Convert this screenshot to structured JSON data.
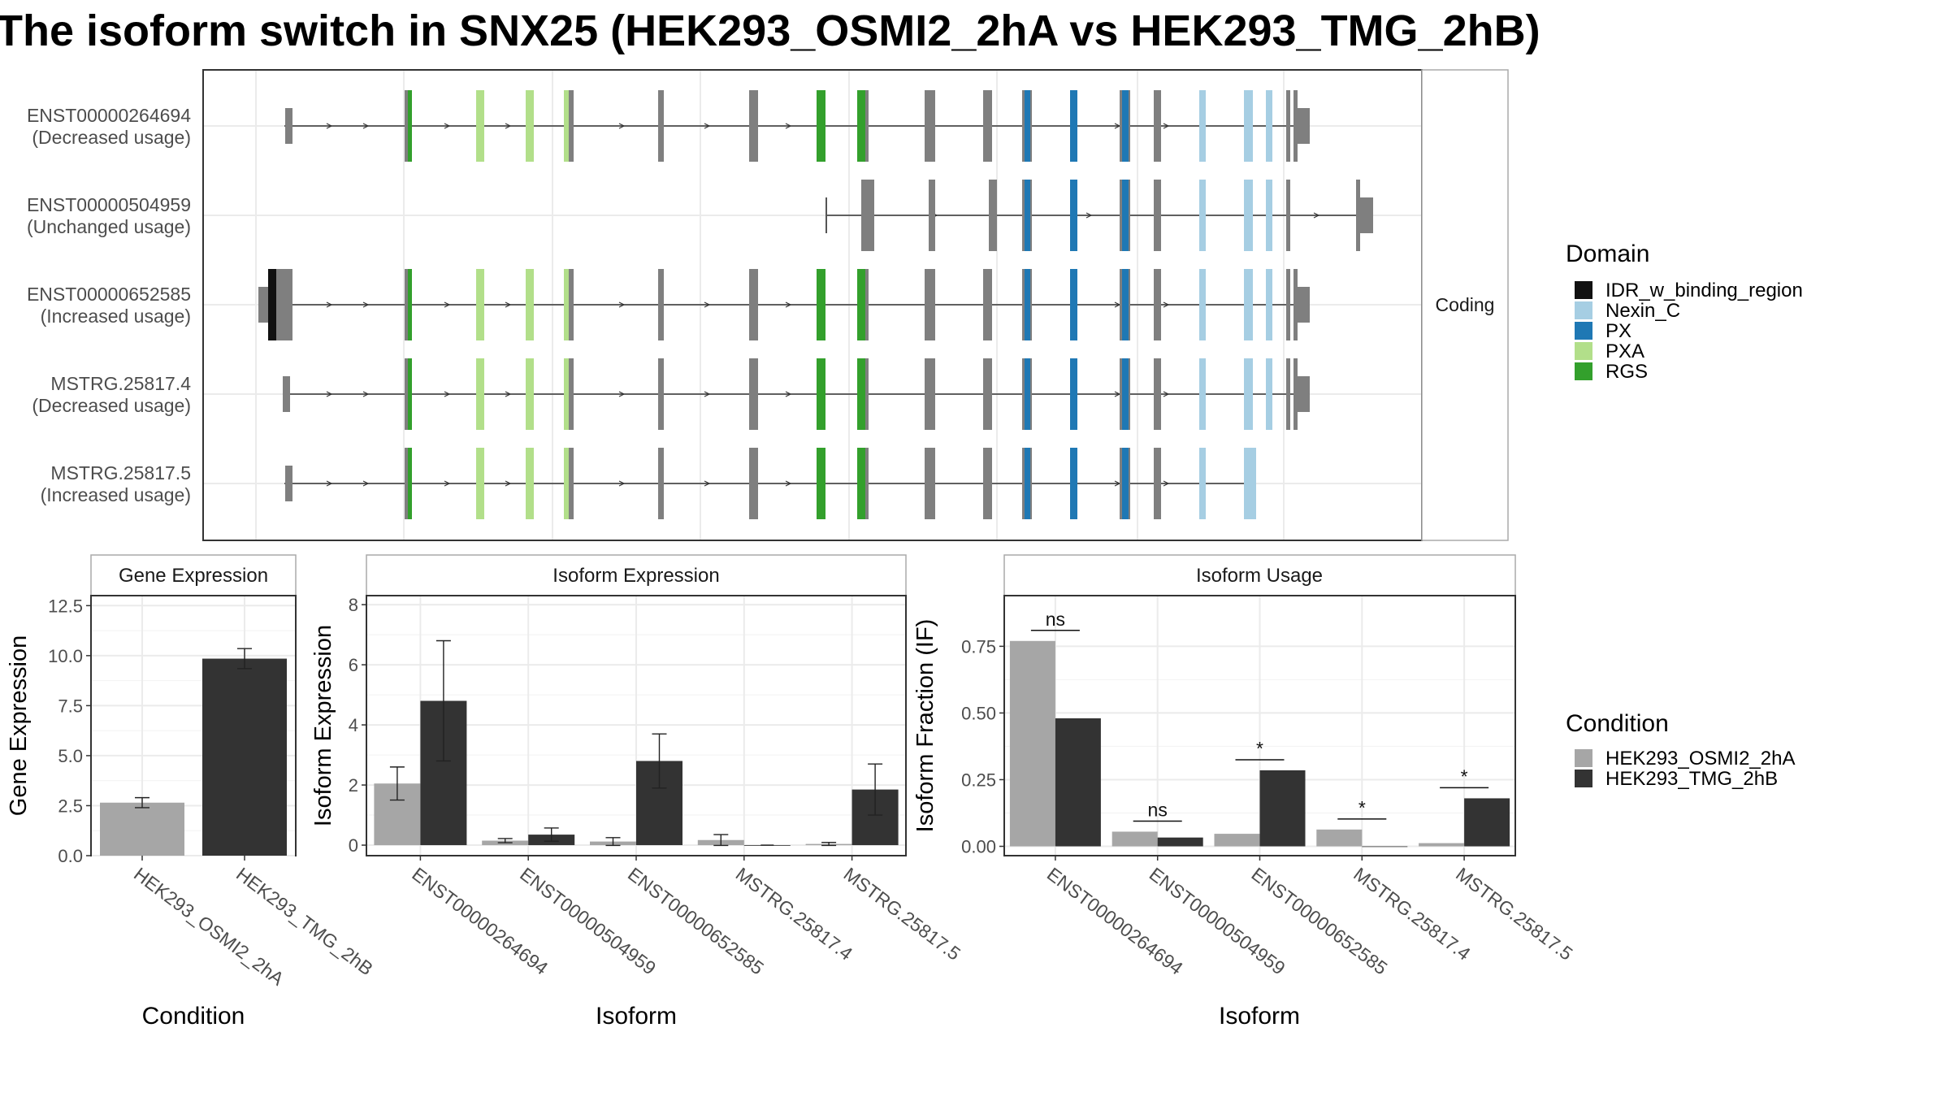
{
  "title": "The isoform switch in SNX25 (HEK293_OSMI2_2hA vs HEK293_TMG_2hB)",
  "colors": {
    "IDR_w_binding_region": "#111111",
    "Nexin_C": "#a6cee3",
    "PX": "#1f78b4",
    "PXA": "#b2df8a",
    "RGS": "#33a02c",
    "exon": "#7f7f7f",
    "cond_a": "#a6a6a6",
    "cond_b": "#333333"
  },
  "structure": {
    "strip_label": "Coding",
    "isoforms": [
      {
        "id": "ENST00000264694",
        "usage": "(Decreased usage)"
      },
      {
        "id": "ENST00000504959",
        "usage": "(Unchanged usage)"
      },
      {
        "id": "ENST00000652585",
        "usage": "(Increased usage)"
      },
      {
        "id": "MSTRG.25817.4",
        "usage": "(Decreased usage)"
      },
      {
        "id": "MSTRG.25817.5",
        "usage": "(Increased usage)"
      }
    ],
    "domain_legend": {
      "title": "Domain",
      "items": [
        "IDR_w_binding_region",
        "Nexin_C",
        "PX",
        "PXA",
        "RGS"
      ]
    }
  },
  "chart_data": [
    {
      "type": "bar",
      "title": "Gene Expression",
      "xlabel": "Condition",
      "ylabel": "Gene Expression",
      "categories": [
        "HEK293_OSMI2_2hA",
        "HEK293_TMG_2hB"
      ],
      "values": [
        2.65,
        9.85
      ],
      "error": [
        0.25,
        0.5
      ],
      "ylim": [
        0,
        13
      ],
      "yticks": [
        "0.0",
        "2.5",
        "5.0",
        "7.5",
        "10.0",
        "12.5"
      ]
    },
    {
      "type": "bar",
      "title": "Isoform Expression",
      "xlabel": "Isoform",
      "ylabel": "Isoform Expression",
      "categories": [
        "ENST00000264694",
        "ENST00000504959",
        "ENST00000652585",
        "MSTRG.25817.4",
        "MSTRG.25817.5"
      ],
      "series": [
        {
          "name": "HEK293_OSMI2_2hA",
          "values": [
            2.05,
            0.15,
            0.12,
            0.17,
            0.04
          ],
          "error": [
            0.55,
            0.07,
            0.13,
            0.18,
            0.05
          ]
        },
        {
          "name": "HEK293_TMG_2hB",
          "values": [
            4.8,
            0.35,
            2.8,
            0.0,
            1.85
          ],
          "error": [
            2.0,
            0.22,
            0.9,
            0.0,
            0.85
          ]
        }
      ],
      "ylim": [
        -0.35,
        8.3
      ],
      "yticks": [
        "0",
        "2",
        "4",
        "6",
        "8"
      ]
    },
    {
      "type": "bar",
      "title": "Isoform Usage",
      "xlabel": "Isoform",
      "ylabel": "Isoform Fraction (IF)",
      "categories": [
        "ENST00000264694",
        "ENST00000504959",
        "ENST00000652585",
        "MSTRG.25817.4",
        "MSTRG.25817.5"
      ],
      "series": [
        {
          "name": "HEK293_OSMI2_2hA",
          "values": [
            0.77,
            0.055,
            0.047,
            0.063,
            0.012
          ]
        },
        {
          "name": "HEK293_TMG_2hB",
          "values": [
            0.48,
            0.033,
            0.285,
            0.0,
            0.18
          ]
        }
      ],
      "significance": [
        "ns",
        "ns",
        "*",
        "*",
        "*"
      ],
      "ylim": [
        -0.035,
        0.94
      ],
      "yticks": [
        "0.00",
        "0.25",
        "0.50",
        "0.75"
      ]
    }
  ],
  "condition_legend": {
    "title": "Condition",
    "items": [
      "HEK293_OSMI2_2hA",
      "HEK293_TMG_2hB"
    ]
  }
}
